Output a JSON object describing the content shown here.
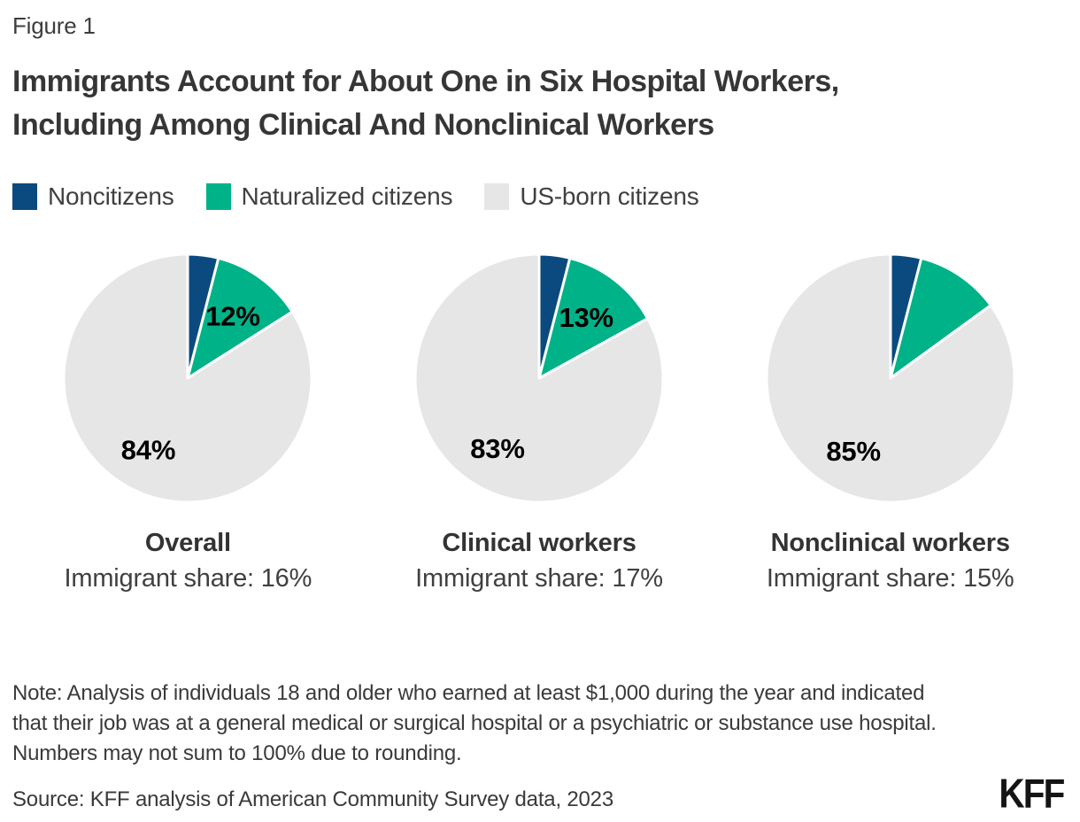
{
  "figure_label": "Figure 1",
  "title": {
    "line1": "Immigrants Account for About One in Six Hospital Workers,",
    "line2": "Including Among Clinical And Nonclinical Workers"
  },
  "legend": {
    "items": [
      {
        "label": "Noncitizens",
        "color": "#0B4A7F"
      },
      {
        "label": "Naturalized citizens",
        "color": "#00B288"
      },
      {
        "label": "US-born citizens",
        "color": "#E6E6E6"
      }
    ]
  },
  "chart_data": {
    "type": "pie",
    "legend_position": "top",
    "categories": [
      "Noncitizens",
      "Naturalized citizens",
      "US-born citizens"
    ],
    "charts": [
      {
        "name": "Overall",
        "share_label": "Immigrant share: 16%",
        "slices": [
          {
            "category": "Noncitizens",
            "value": 4,
            "label": ""
          },
          {
            "category": "Naturalized citizens",
            "value": 12,
            "label": "12%"
          },
          {
            "category": "US-born citizens",
            "value": 84,
            "label": "84%"
          }
        ]
      },
      {
        "name": "Clinical workers",
        "share_label": "Immigrant share: 17%",
        "slices": [
          {
            "category": "Noncitizens",
            "value": 4,
            "label": ""
          },
          {
            "category": "Naturalized citizens",
            "value": 13,
            "label": "13%"
          },
          {
            "category": "US-born citizens",
            "value": 83,
            "label": "83%"
          }
        ]
      },
      {
        "name": "Nonclinical workers",
        "share_label": "Immigrant share: 15%",
        "slices": [
          {
            "category": "Noncitizens",
            "value": 4,
            "label": ""
          },
          {
            "category": "Naturalized citizens",
            "value": 11,
            "label": ""
          },
          {
            "category": "US-born citizens",
            "value": 85,
            "label": "85%"
          }
        ]
      }
    ]
  },
  "note": "Note: Analysis of individuals 18 and older who earned at least $1,000 during the year and indicated that their job was at a general medical or surgical hospital or a psychiatric or substance use hospital. Numbers may not sum to 100% due to rounding.",
  "source": "Source: KFF analysis of American Community Survey data, 2023",
  "logo": "KFF"
}
